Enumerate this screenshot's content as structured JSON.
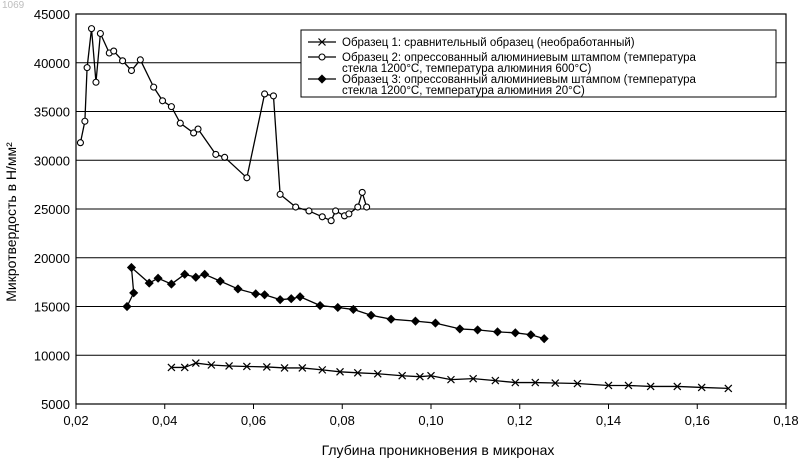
{
  "page_number": "1069",
  "chart_data": {
    "type": "line",
    "xlabel": "Глубина проникновения в микронах",
    "ylabel": "Микротвердость в Н/мм²",
    "xlim": [
      0.02,
      0.18
    ],
    "ylim": [
      5000,
      45000
    ],
    "x_ticks": [
      "0,02",
      "0,04",
      "0,06",
      "0,08",
      "0,10",
      "0,12",
      "0,14",
      "0,16",
      "0,18"
    ],
    "y_ticks": [
      "5000",
      "10000",
      "15000",
      "20000",
      "25000",
      "30000",
      "35000",
      "40000",
      "45000"
    ],
    "grid": "horizontal",
    "legend_position": "top-right",
    "series": [
      {
        "name": "Образец 1: сравнительный образец (необработанный)",
        "marker": "x",
        "x": [
          0.0415,
          0.0445,
          0.047,
          0.0505,
          0.0545,
          0.0585,
          0.063,
          0.067,
          0.071,
          0.0755,
          0.0795,
          0.0835,
          0.088,
          0.0935,
          0.0975,
          0.1,
          0.1045,
          0.1095,
          0.1145,
          0.119,
          0.1235,
          0.128,
          0.133,
          0.14,
          0.1445,
          0.1495,
          0.1555,
          0.161,
          0.167
        ],
        "y": [
          8750,
          8750,
          9200,
          9000,
          8900,
          8850,
          8800,
          8700,
          8700,
          8500,
          8300,
          8200,
          8100,
          7900,
          7800,
          7900,
          7500,
          7600,
          7400,
          7200,
          7200,
          7150,
          7100,
          6900,
          6900,
          6800,
          6800,
          6700,
          6600
        ]
      },
      {
        "name": "Образец 2: опрессованный алюминиевым штампом (температура стекла 1200°С, температура алюминия 600°С)",
        "marker": "open-circle",
        "x": [
          0.021,
          0.022,
          0.0225,
          0.0235,
          0.0245,
          0.0255,
          0.0275,
          0.0285,
          0.0305,
          0.0325,
          0.0345,
          0.0375,
          0.0395,
          0.0415,
          0.0435,
          0.0465,
          0.0475,
          0.0515,
          0.0535,
          0.0585,
          0.0625,
          0.0645,
          0.066,
          0.0695,
          0.0725,
          0.0755,
          0.0775,
          0.0785,
          0.0805,
          0.0815,
          0.0835,
          0.0845,
          0.0855
        ],
        "y": [
          31800,
          34000,
          39500,
          43500,
          38000,
          43000,
          41000,
          41200,
          40200,
          39200,
          40300,
          37500,
          36100,
          35500,
          33800,
          32800,
          33200,
          30600,
          30300,
          28200,
          36800,
          36600,
          26500,
          25200,
          24800,
          24200,
          23800,
          24800,
          24300,
          24500,
          25200,
          26700,
          25200
        ]
      },
      {
        "name": "Образец 3: опрессованный алюминиевым штампом (температура стекла 1200°С, температура алюминия 20°С)",
        "marker": "filled-diamond",
        "x": [
          0.0315,
          0.033,
          0.0325,
          0.0365,
          0.0385,
          0.0415,
          0.0445,
          0.047,
          0.049,
          0.0525,
          0.0565,
          0.0605,
          0.0625,
          0.066,
          0.0685,
          0.0705,
          0.075,
          0.079,
          0.0825,
          0.0865,
          0.091,
          0.0965,
          0.101,
          0.1065,
          0.1105,
          0.115,
          0.119,
          0.1225,
          0.1255
        ],
        "y": [
          15000,
          16400,
          19000,
          17400,
          17900,
          17300,
          18300,
          18000,
          18300,
          17600,
          16800,
          16300,
          16200,
          15700,
          15800,
          16000,
          15100,
          14900,
          14700,
          14100,
          13700,
          13500,
          13300,
          12700,
          12600,
          12400,
          12300,
          12100,
          11700
        ]
      }
    ]
  }
}
